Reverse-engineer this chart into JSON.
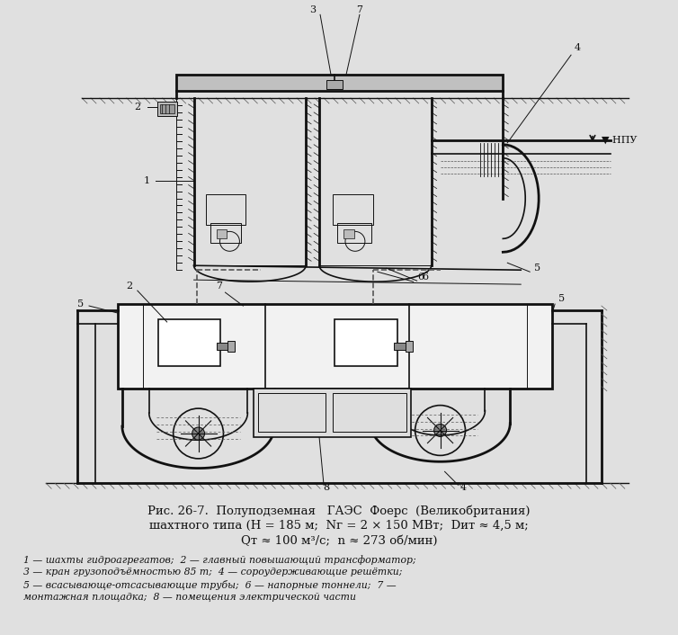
{
  "bg_color": "#e0e0e0",
  "title_line1": "Рис. 26-7.  Полуподземная   ГАЭС  Фоерс  (Великобритания)",
  "title_line2": "шахтного типа (H = 185 м;  Nг = 2 × 150 МВт;  Dит ≈ 4,5 м;",
  "title_line3": "Qт ≈ 100 м³/с;  n ≈ 273 об/мин)",
  "legend_line1": "1 — шахты гидроагрегатов;  2 — главный повышающий трансформатор;",
  "legend_line2": "3 — кран грузоподъёмностью 85 т;  4 — сороудерживающие решётки;",
  "legend_line3": "5 — всасывающе-отсасывающие трубы;  6 — напорные тоннели;  7 —",
  "legend_line4": "монтажная площадка;  8 — помещения электрической части",
  "npu_label": "▼ НПУ"
}
